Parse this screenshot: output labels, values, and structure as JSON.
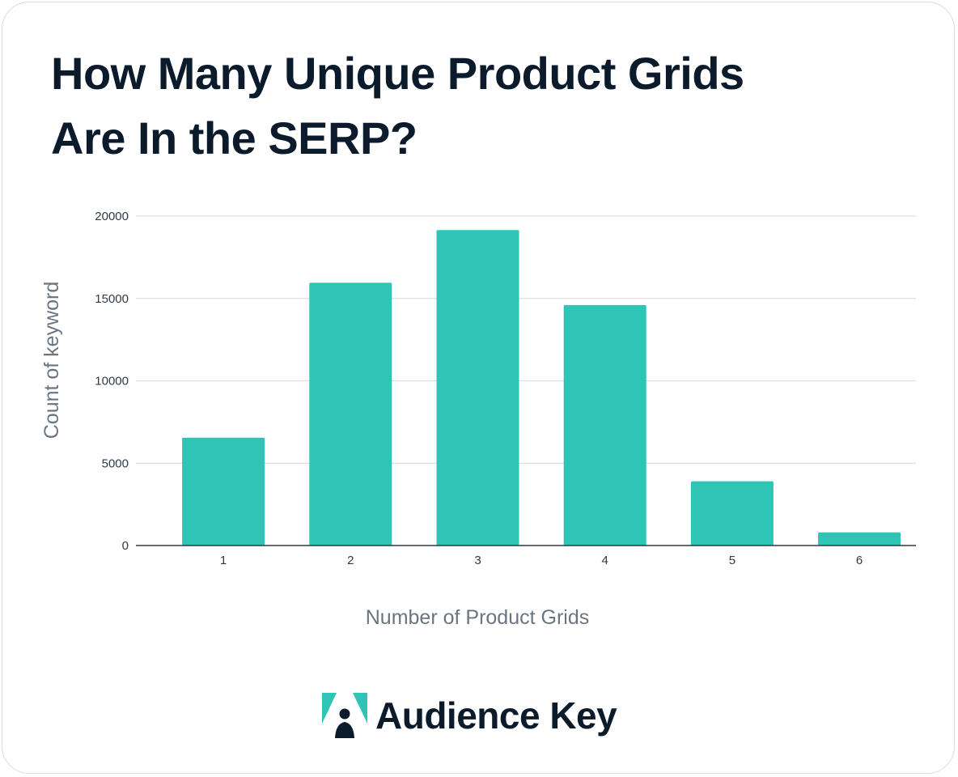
{
  "header": {
    "title_line1": "How Many Unique Product Grids",
    "title_line2": "Are In the SERP?"
  },
  "chart_data": {
    "type": "bar",
    "categories": [
      "1",
      "2",
      "3",
      "4",
      "5",
      "6"
    ],
    "values": [
      6550,
      15950,
      19150,
      14600,
      3900,
      800
    ],
    "xlabel": "Number of Product Grids",
    "ylabel": "Count of keyword",
    "ylim": [
      0,
      20000
    ],
    "yticks": [
      0,
      5000,
      10000,
      15000,
      20000
    ],
    "grid": true,
    "legend": "none",
    "bar_color": "#2ec4b6",
    "gridline_color": "#dcdfe3",
    "axis_label_color": "#6b7580"
  },
  "brand": {
    "name": "Audience Key",
    "logo_icon": "audience-key-logo-icon",
    "logo_color": "#2ec4b6",
    "text_color": "#0b1b2b"
  }
}
